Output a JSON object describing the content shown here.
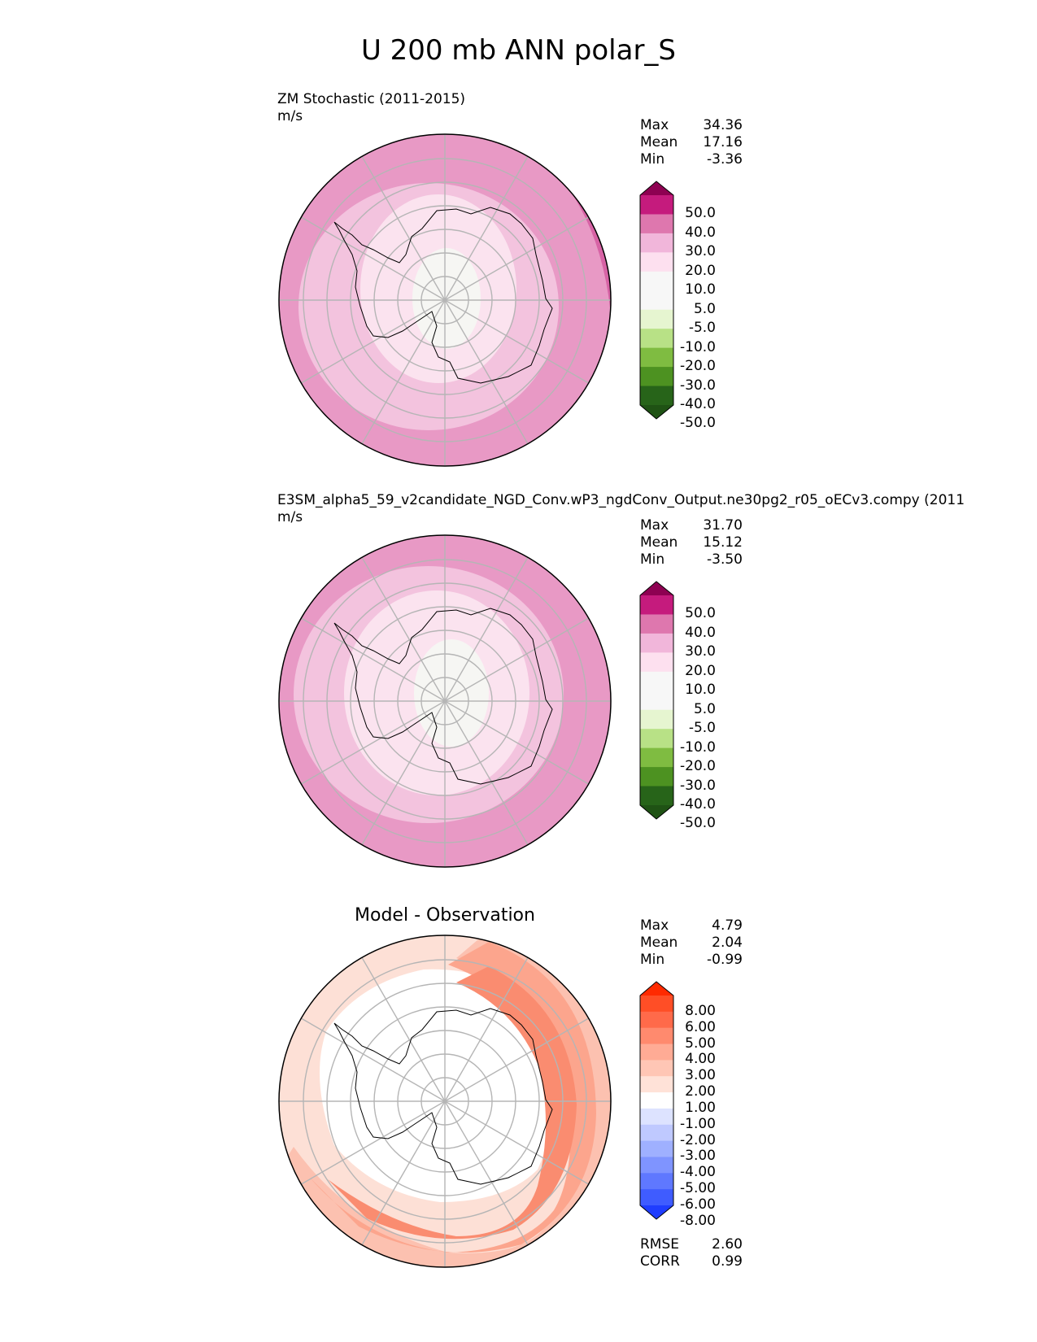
{
  "title": "U 200 mb ANN polar_S",
  "chart_data": [
    {
      "type": "heatmap",
      "projection": "south-polar-stereographic",
      "title": "ZM Stochastic (2011-2015)",
      "units": "m/s",
      "stats": {
        "max_label": "Max",
        "max": "34.36",
        "mean_label": "Mean",
        "mean": "17.16",
        "min_label": "Min",
        "min": "-3.36"
      },
      "colorbar": {
        "ticks": [
          "50.0",
          "40.0",
          "30.0",
          "20.0",
          "10.0",
          "5.0",
          "-5.0",
          "-10.0",
          "-20.0",
          "-30.0",
          "-40.0",
          "-50.0"
        ],
        "colors": [
          "#8e0152",
          "#c51b7d",
          "#de77ae",
          "#f1b6da",
          "#fde0ef",
          "#f7f7f7",
          "#f7f7f7",
          "#e6f5d0",
          "#b8e186",
          "#7fbc41",
          "#4d9221",
          "#276419",
          "#1f5214"
        ]
      },
      "bands": [
        {
          "value": 25,
          "color": "#e899c5"
        },
        {
          "value": 15,
          "color": "#f3c3de"
        },
        {
          "value": 8,
          "color": "#fbe3ef"
        },
        {
          "value": 2,
          "color": "#f6f6f3"
        }
      ],
      "jet_max_color": "#d763a5"
    },
    {
      "type": "heatmap",
      "projection": "south-polar-stereographic",
      "title": "E3SM_alpha5_59_v2candidate_NGD_Conv.wP3_ngdConv_Output.ne30pg2_r05_oECv3.compy (2011",
      "units": "m/s",
      "stats": {
        "max_label": "Max",
        "max": "31.70",
        "mean_label": "Mean",
        "mean": "15.12",
        "min_label": "Min",
        "min": "-3.50"
      },
      "colorbar": {
        "ticks": [
          "50.0",
          "40.0",
          "30.0",
          "20.0",
          "10.0",
          "5.0",
          "-5.0",
          "-10.0",
          "-20.0",
          "-30.0",
          "-40.0",
          "-50.0"
        ],
        "colors": [
          "#8e0152",
          "#c51b7d",
          "#de77ae",
          "#f1b6da",
          "#fde0ef",
          "#f7f7f7",
          "#f7f7f7",
          "#e6f5d0",
          "#b8e186",
          "#7fbc41",
          "#4d9221",
          "#276419",
          "#1f5214"
        ]
      },
      "bands": [
        {
          "value": 25,
          "color": "#e899c5"
        },
        {
          "value": 15,
          "color": "#f3c3de"
        },
        {
          "value": 8,
          "color": "#fbe3ef"
        },
        {
          "value": 2,
          "color": "#f6f6f3"
        }
      ]
    },
    {
      "type": "heatmap",
      "projection": "south-polar-stereographic",
      "title": "Model - Observation",
      "units": "",
      "stats": {
        "max_label": "Max",
        "max": "4.79",
        "mean_label": "Mean",
        "mean": "2.04",
        "min_label": "Min",
        "min": "-0.99"
      },
      "metrics": {
        "rmse_label": "RMSE",
        "rmse": "2.60",
        "corr_label": "CORR",
        "corr": "0.99"
      },
      "colorbar": {
        "ticks": [
          "8.00",
          "6.00",
          "5.00",
          "4.00",
          "3.00",
          "2.00",
          "1.00",
          "-1.00",
          "-2.00",
          "-3.00",
          "-4.00",
          "-5.00",
          "-6.00",
          "-8.00"
        ],
        "colors": [
          "#ff2a00",
          "#ff4e26",
          "#ff6a4a",
          "#ff8a6e",
          "#ffab95",
          "#ffc6b5",
          "#ffe2d8",
          "#ffffff",
          "#dde3ff",
          "#bfc9ff",
          "#9fb0ff",
          "#7f94ff",
          "#5f78ff",
          "#3f5cff",
          "#1f3dff"
        ]
      },
      "bands": [
        {
          "value": 1.5,
          "color": "#fde0d6"
        },
        {
          "value": 2.5,
          "color": "#fcc1b0"
        },
        {
          "value": 3.5,
          "color": "#fca58d"
        },
        {
          "value": 4.5,
          "color": "#fa8c70"
        }
      ]
    }
  ]
}
